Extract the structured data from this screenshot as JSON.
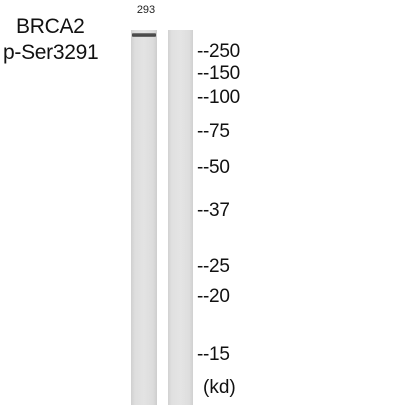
{
  "title_line1": "BRCA2",
  "title_line2": "p-Ser3291",
  "lane_label": "293",
  "markers": [
    "--250",
    "--150",
    "--100",
    "--75",
    "--50",
    "--37",
    "--25",
    "--20",
    "--15"
  ],
  "unit": "(kd)"
}
